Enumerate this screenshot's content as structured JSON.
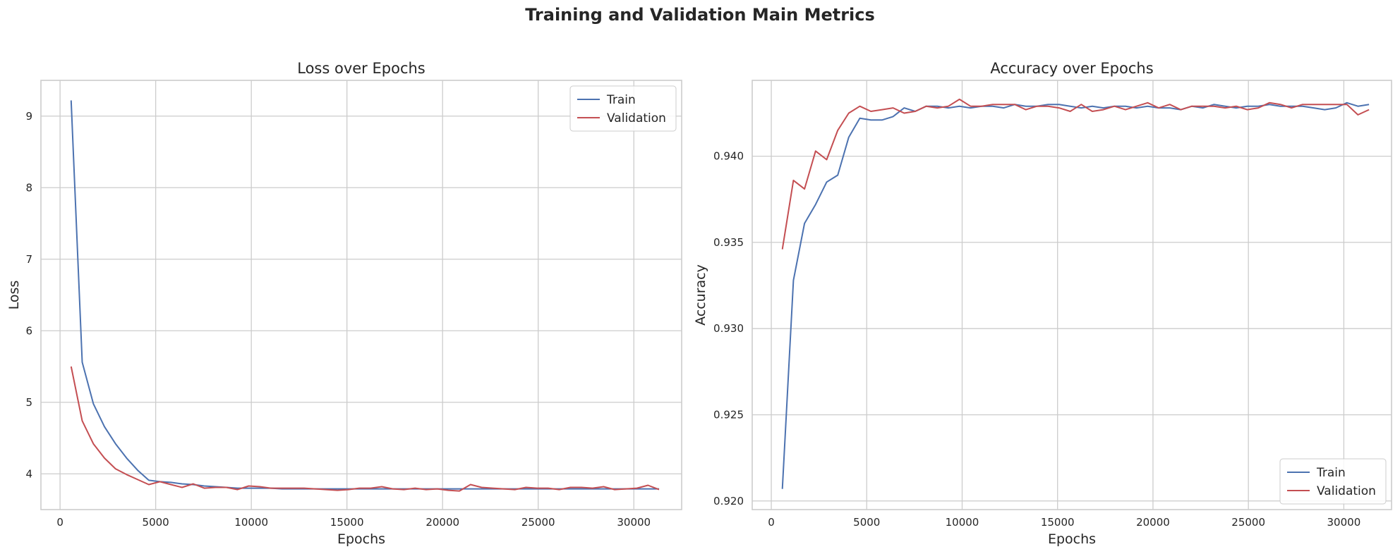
{
  "figure_title": "Training and Validation Main Metrics",
  "chart_data": [
    {
      "type": "line",
      "title": "Loss over Epochs",
      "xlabel": "Epochs",
      "ylabel": "Loss",
      "xlim": [
        -1000,
        32500
      ],
      "ylim": [
        3.5,
        9.5
      ],
      "xticks": [
        0,
        5000,
        10000,
        15000,
        20000,
        25000,
        30000
      ],
      "yticks": [
        4,
        5,
        6,
        7,
        8,
        9
      ],
      "ytick_decimals": 0,
      "grid": true,
      "legend_position": "top-right",
      "x": [
        580,
        1160,
        1740,
        2320,
        2900,
        3480,
        4060,
        4640,
        5220,
        5800,
        6380,
        6960,
        7540,
        8120,
        8700,
        9280,
        9860,
        10440,
        11020,
        11600,
        12180,
        12760,
        13340,
        13920,
        14500,
        15080,
        15660,
        16240,
        16820,
        17400,
        17980,
        18560,
        19140,
        19720,
        20300,
        20880,
        21460,
        22040,
        22620,
        23200,
        23780,
        24360,
        24940,
        25520,
        26100,
        26680,
        27260,
        27840,
        28420,
        29000,
        29580,
        30160,
        30740,
        31320
      ],
      "series": [
        {
          "name": "Train",
          "color": "#4c72b0",
          "values": [
            9.22,
            5.56,
            4.98,
            4.66,
            4.42,
            4.22,
            4.05,
            3.91,
            3.89,
            3.88,
            3.86,
            3.85,
            3.83,
            3.82,
            3.81,
            3.8,
            3.8,
            3.8,
            3.8,
            3.79,
            3.79,
            3.79,
            3.79,
            3.79,
            3.79,
            3.79,
            3.79,
            3.79,
            3.79,
            3.79,
            3.79,
            3.79,
            3.79,
            3.79,
            3.79,
            3.79,
            3.79,
            3.79,
            3.79,
            3.79,
            3.79,
            3.79,
            3.79,
            3.79,
            3.79,
            3.79,
            3.79,
            3.79,
            3.79,
            3.79,
            3.79,
            3.79,
            3.79,
            3.79
          ]
        },
        {
          "name": "Validation",
          "color": "#c44e52",
          "values": [
            5.5,
            4.74,
            4.42,
            4.22,
            4.07,
            3.99,
            3.92,
            3.85,
            3.89,
            3.85,
            3.81,
            3.86,
            3.8,
            3.81,
            3.81,
            3.78,
            3.83,
            3.82,
            3.8,
            3.8,
            3.8,
            3.8,
            3.79,
            3.78,
            3.77,
            3.78,
            3.8,
            3.8,
            3.82,
            3.79,
            3.78,
            3.8,
            3.78,
            3.79,
            3.77,
            3.76,
            3.85,
            3.81,
            3.8,
            3.79,
            3.78,
            3.81,
            3.8,
            3.8,
            3.78,
            3.81,
            3.81,
            3.8,
            3.82,
            3.78,
            3.79,
            3.8,
            3.84,
            3.78
          ]
        }
      ]
    },
    {
      "type": "line",
      "title": "Accuracy over Epochs",
      "xlabel": "Epochs",
      "ylabel": "Accuracy",
      "xlim": [
        -1000,
        32500
      ],
      "ylim": [
        0.9195,
        0.9444
      ],
      "xticks": [
        0,
        5000,
        10000,
        15000,
        20000,
        25000,
        30000
      ],
      "yticks": [
        0.92,
        0.925,
        0.93,
        0.935,
        0.94
      ],
      "ytick_decimals": 3,
      "grid": true,
      "legend_position": "bottom-right",
      "x": [
        580,
        1160,
        1740,
        2320,
        2900,
        3480,
        4060,
        4640,
        5220,
        5800,
        6380,
        6960,
        7540,
        8120,
        8700,
        9280,
        9860,
        10440,
        11020,
        11600,
        12180,
        12760,
        13340,
        13920,
        14500,
        15080,
        15660,
        16240,
        16820,
        17400,
        17980,
        18560,
        19140,
        19720,
        20300,
        20880,
        21460,
        22040,
        22620,
        23200,
        23780,
        24360,
        24940,
        25520,
        26100,
        26680,
        27260,
        27840,
        28420,
        29000,
        29580,
        30160,
        30740,
        31320
      ],
      "series": [
        {
          "name": "Train",
          "color": "#4c72b0",
          "values": [
            0.9207,
            0.9328,
            0.9361,
            0.9372,
            0.9385,
            0.9389,
            0.9411,
            0.9422,
            0.9421,
            0.9421,
            0.9423,
            0.9428,
            0.9426,
            0.9429,
            0.9429,
            0.9428,
            0.9429,
            0.9428,
            0.9429,
            0.9429,
            0.9428,
            0.943,
            0.9429,
            0.9429,
            0.943,
            0.943,
            0.9429,
            0.9428,
            0.9429,
            0.9428,
            0.9429,
            0.9429,
            0.9428,
            0.9429,
            0.9428,
            0.9428,
            0.9427,
            0.9429,
            0.9428,
            0.943,
            0.9429,
            0.9428,
            0.9429,
            0.9429,
            0.943,
            0.9429,
            0.9429,
            0.9429,
            0.9428,
            0.9427,
            0.9428,
            0.9431,
            0.9429,
            0.943
          ]
        },
        {
          "name": "Validation",
          "color": "#c44e52",
          "values": [
            0.9346,
            0.9386,
            0.9381,
            0.9403,
            0.9398,
            0.9415,
            0.9425,
            0.9429,
            0.9426,
            0.9427,
            0.9428,
            0.9425,
            0.9426,
            0.9429,
            0.9428,
            0.9429,
            0.9433,
            0.9429,
            0.9429,
            0.943,
            0.943,
            0.943,
            0.9427,
            0.9429,
            0.9429,
            0.9428,
            0.9426,
            0.943,
            0.9426,
            0.9427,
            0.9429,
            0.9427,
            0.9429,
            0.9431,
            0.9428,
            0.943,
            0.9427,
            0.9429,
            0.9429,
            0.9429,
            0.9428,
            0.9429,
            0.9427,
            0.9428,
            0.9431,
            0.943,
            0.9428,
            0.943,
            0.943,
            0.943,
            0.943,
            0.943,
            0.9424,
            0.9427
          ]
        }
      ]
    }
  ]
}
